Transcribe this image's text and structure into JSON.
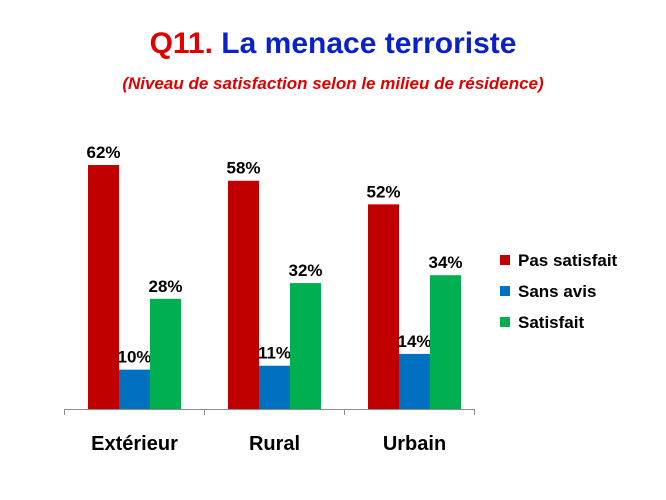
{
  "title": {
    "prefix": "Q11.",
    "text": "La  menace terroriste"
  },
  "subtitle": "(Niveau de satisfaction selon le milieu de résidence)",
  "chart_data": {
    "type": "bar",
    "categories": [
      "Extérieur",
      "Rural",
      "Urbain"
    ],
    "series": [
      {
        "name": "Pas satisfait",
        "values": [
          62,
          58,
          52
        ],
        "color": "#c00000",
        "labels": [
          "62%",
          "58%",
          "52%"
        ]
      },
      {
        "name": "Sans avis",
        "values": [
          10,
          11,
          14
        ],
        "color": "#0070c0",
        "labels": [
          "10%",
          "11%",
          "14%"
        ]
      },
      {
        "name": "Satisfait",
        "values": [
          28,
          32,
          34
        ],
        "color": "#00b050",
        "labels": [
          "28%",
          "32%",
          "34%"
        ]
      }
    ],
    "ylim": [
      0,
      62
    ],
    "grid": false,
    "legend": "right"
  }
}
